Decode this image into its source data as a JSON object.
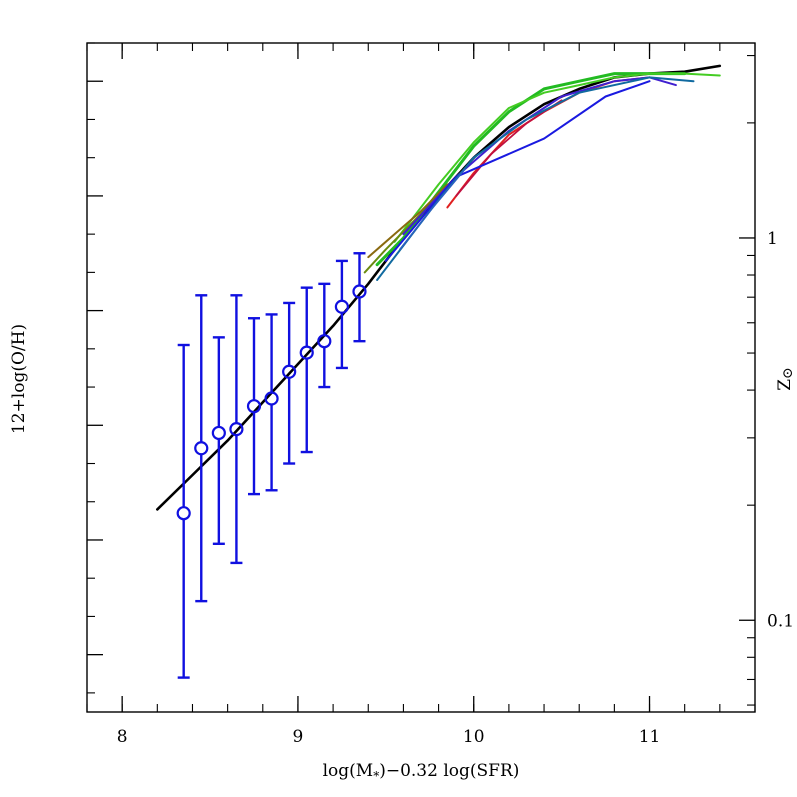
{
  "chart_data": {
    "type": "scatter",
    "xlabel": "log(M",
    "xlabel_sub": "*",
    "xlabel_rest": ")−0.32 log(SFR)",
    "ylabel": "12+log(O/H)",
    "ylabel_right": "Z",
    "ylabel_right_symbol": "⊙",
    "xlim": [
      7.8,
      11.6
    ],
    "ylim": [
      7.45,
      9.2
    ],
    "x_ticks": [
      8,
      9,
      10,
      11
    ],
    "x_tick_labels": [
      "8",
      "9",
      "10",
      "11"
    ],
    "y_major_ticks": [
      7.6,
      7.9,
      8.2,
      8.5,
      8.8,
      9.1
    ],
    "y_minor_step": 0.1,
    "right_axis": {
      "solar_oh": 8.69,
      "major": [
        {
          "z": 0.1,
          "label": "0.1"
        },
        {
          "z": 1,
          "label": "1"
        }
      ],
      "minor_z": [
        0.05,
        0.06,
        0.07,
        0.08,
        0.09,
        0.2,
        0.3,
        0.4,
        0.5,
        0.6,
        0.7,
        0.8,
        0.9,
        2,
        3
      ]
    },
    "series": [
      {
        "type": "errorbar",
        "color": "#1010e0",
        "points": [
          {
            "x": 8.35,
            "y": 7.97,
            "lo": 7.54,
            "hi": 8.41
          },
          {
            "x": 8.45,
            "y": 8.14,
            "lo": 7.74,
            "hi": 8.54
          },
          {
            "x": 8.55,
            "y": 8.18,
            "lo": 7.89,
            "hi": 8.43
          },
          {
            "x": 8.65,
            "y": 8.19,
            "lo": 7.84,
            "hi": 8.54
          },
          {
            "x": 8.75,
            "y": 8.25,
            "lo": 8.02,
            "hi": 8.48
          },
          {
            "x": 8.85,
            "y": 8.27,
            "lo": 8.03,
            "hi": 8.49
          },
          {
            "x": 8.95,
            "y": 8.34,
            "lo": 8.1,
            "hi": 8.52
          },
          {
            "x": 9.05,
            "y": 8.39,
            "lo": 8.13,
            "hi": 8.56
          },
          {
            "x": 9.15,
            "y": 8.42,
            "lo": 8.3,
            "hi": 8.57
          },
          {
            "x": 9.25,
            "y": 8.51,
            "lo": 8.35,
            "hi": 8.63
          },
          {
            "x": 9.35,
            "y": 8.55,
            "lo": 8.42,
            "hi": 8.65
          }
        ]
      },
      {
        "type": "line",
        "color": "#000000",
        "width": 2.6,
        "points": [
          [
            8.2,
            7.98
          ],
          [
            8.4,
            8.07
          ],
          [
            8.6,
            8.16
          ],
          [
            8.8,
            8.26
          ],
          [
            9.0,
            8.36
          ],
          [
            9.2,
            8.46
          ],
          [
            9.4,
            8.57
          ],
          [
            9.6,
            8.69
          ],
          [
            9.8,
            8.8
          ],
          [
            10.0,
            8.9
          ],
          [
            10.2,
            8.98
          ],
          [
            10.4,
            9.04
          ],
          [
            10.6,
            9.08
          ],
          [
            10.8,
            9.11
          ],
          [
            11.0,
            9.12
          ],
          [
            11.2,
            9.125
          ],
          [
            11.4,
            9.14
          ]
        ]
      },
      {
        "type": "line",
        "color": "#22bb22",
        "width": 3,
        "points": [
          [
            9.45,
            8.62
          ],
          [
            9.6,
            8.69
          ],
          [
            9.8,
            8.81
          ],
          [
            10.0,
            8.93
          ],
          [
            10.2,
            9.02
          ],
          [
            10.4,
            9.08
          ],
          [
            10.6,
            9.1
          ],
          [
            10.8,
            9.12
          ],
          [
            11.0,
            9.12
          ],
          [
            11.2,
            9.12
          ]
        ]
      },
      {
        "type": "line",
        "color": "#44cc22",
        "width": 2,
        "points": [
          [
            9.55,
            8.68
          ],
          [
            9.8,
            8.83
          ],
          [
            10.0,
            8.94
          ],
          [
            10.2,
            9.03
          ],
          [
            10.4,
            9.07
          ],
          [
            10.6,
            9.09
          ],
          [
            10.8,
            9.11
          ],
          [
            11.0,
            9.12
          ],
          [
            11.2,
            9.12
          ],
          [
            11.4,
            9.115
          ]
        ]
      },
      {
        "type": "line",
        "color": "#8a6a10",
        "width": 2,
        "points": [
          [
            9.4,
            8.64
          ],
          [
            9.55,
            8.7
          ],
          [
            9.7,
            8.76
          ],
          [
            9.85,
            8.83
          ]
        ]
      },
      {
        "type": "line",
        "color": "#6a8a10",
        "width": 2,
        "points": [
          [
            9.38,
            8.6
          ],
          [
            9.5,
            8.66
          ],
          [
            9.65,
            8.73
          ],
          [
            9.8,
            8.8
          ]
        ]
      },
      {
        "type": "line",
        "color": "#e02020",
        "width": 2,
        "points": [
          [
            9.85,
            8.77
          ],
          [
            10.0,
            8.86
          ],
          [
            10.2,
            8.96
          ],
          [
            10.4,
            9.02
          ],
          [
            10.6,
            9.07
          ],
          [
            10.8,
            9.1
          ],
          [
            11.0,
            9.11
          ]
        ]
      },
      {
        "type": "line",
        "color": "#c01040",
        "width": 1.8,
        "points": [
          [
            9.9,
            8.8
          ],
          [
            10.1,
            8.91
          ],
          [
            10.3,
            8.99
          ],
          [
            10.5,
            9.05
          ]
        ]
      },
      {
        "type": "line",
        "color": "#4020d0",
        "width": 2,
        "points": [
          [
            9.6,
            8.7
          ],
          [
            9.9,
            8.85
          ],
          [
            10.2,
            8.97
          ],
          [
            10.5,
            9.06
          ],
          [
            10.8,
            9.1
          ],
          [
            11.0,
            9.11
          ],
          [
            11.15,
            9.09
          ]
        ]
      },
      {
        "type": "line",
        "color": "#1a1ae0",
        "width": 2,
        "points": [
          [
            9.5,
            8.63
          ],
          [
            9.9,
            8.85
          ],
          [
            10.4,
            8.95
          ],
          [
            10.75,
            9.06
          ],
          [
            11.0,
            9.1
          ]
        ]
      },
      {
        "type": "line",
        "color": "#106aa0",
        "width": 2,
        "points": [
          [
            9.45,
            8.58
          ],
          [
            9.6,
            8.67
          ],
          [
            9.8,
            8.79
          ],
          [
            10.0,
            8.9
          ],
          [
            10.3,
            9.0
          ],
          [
            10.6,
            9.07
          ],
          [
            11.0,
            9.11
          ],
          [
            11.25,
            9.1
          ]
        ]
      },
      {
        "type": "line",
        "color": "#2a60c0",
        "width": 1.6,
        "points": [
          [
            9.58,
            8.66
          ],
          [
            9.75,
            8.76
          ],
          [
            9.95,
            8.87
          ]
        ]
      }
    ]
  }
}
